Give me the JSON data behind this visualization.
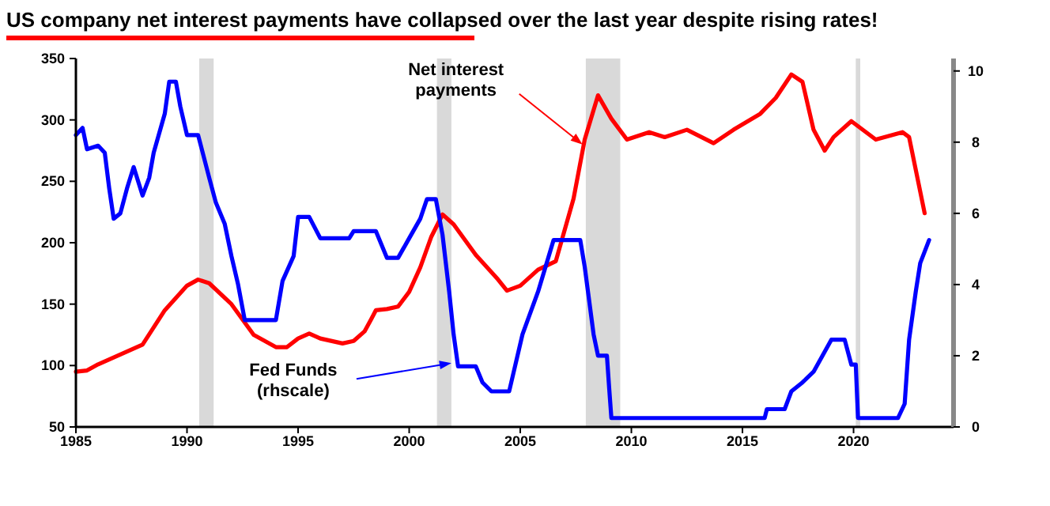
{
  "chart_data": {
    "type": "line",
    "title": "US company net interest payments have collapsed over the last year despite rising rates!",
    "xlim": [
      1985,
      2024.5
    ],
    "xticks": [
      1985,
      1990,
      1995,
      2000,
      2005,
      2010,
      2015,
      2020
    ],
    "ylim": [
      50,
      350
    ],
    "yticks": [
      50,
      100,
      150,
      200,
      250,
      300,
      350
    ],
    "y2lim": [
      0,
      10.35
    ],
    "y2ticks": [
      0,
      2,
      4,
      6,
      8,
      10
    ],
    "grid": false,
    "marker": "none",
    "line_style": "solid",
    "bands": [
      {
        "axis": "x",
        "from": 1990.55,
        "to": 1991.2,
        "color": "#d9d9d9"
      },
      {
        "axis": "x",
        "from": 2001.25,
        "to": 2001.9,
        "color": "#d9d9d9"
      },
      {
        "axis": "x",
        "from": 2007.95,
        "to": 2009.5,
        "color": "#d9d9d9"
      },
      {
        "axis": "x",
        "from": 2020.1,
        "to": 2020.3,
        "color": "#d9d9d9"
      }
    ],
    "annotations": [
      {
        "text": "Net interest payments",
        "x": 2007.8,
        "y": 280
      },
      {
        "text": "Fed Funds (rhscale)",
        "x": 2001.9,
        "y": 102
      }
    ],
    "series": [
      {
        "color": "#ff0000",
        "x": [
          1985,
          1985.5,
          1986,
          1987,
          1988,
          1989,
          1990,
          1990.5,
          1991,
          1992,
          1993,
          1994,
          1994.5,
          1995,
          1995.5,
          1996,
          1997,
          1997.5,
          1998,
          1998.3,
          1998.5,
          1999,
          1999.5,
          2000,
          2000.5,
          2001,
          2001.5,
          2002,
          2003,
          2004,
          2004.4,
          2005,
          2005.8,
          2006.6,
          2007.4,
          2007.9,
          2008.5,
          2009.1,
          2009.8,
          2010.8,
          2011.5,
          2012.5,
          2013.7,
          2014.6,
          2015.8,
          2016.5,
          2017.2,
          2017.7,
          2018.2,
          2018.7,
          2019.1,
          2019.9,
          2021,
          2022.2,
          2022.5,
          2023.2
        ],
        "values": [
          95,
          96,
          101,
          109,
          117,
          145,
          165,
          170,
          167,
          150,
          125,
          115,
          115,
          122,
          126,
          122,
          118,
          120,
          128,
          138,
          145,
          146,
          148,
          160,
          180,
          205,
          223,
          215,
          190,
          170,
          161,
          165,
          178,
          185,
          236,
          284,
          320,
          301,
          284,
          290,
          286,
          292,
          281,
          292,
          305,
          318,
          337,
          331,
          292,
          275,
          286,
          299,
          284,
          290,
          286,
          224
        ]
      },
      {
        "color": "#0000ff",
        "axis": "y2",
        "x": [
          1985,
          1985.3,
          1985.5,
          1986,
          1986.3,
          1986.5,
          1986.7,
          1987,
          1987.3,
          1987.6,
          1988,
          1988.3,
          1988.5,
          1989,
          1989.2,
          1989.5,
          1989.7,
          1990,
          1990.5,
          1991,
          1991.3,
          1991.7,
          1992,
          1992.3,
          1992.6,
          1994,
          1994.3,
          1994.8,
          1995,
          1995.5,
          1996,
          1997.3,
          1997.5,
          1998.5,
          1999,
          1999.5,
          2000,
          2000.5,
          2000.8,
          2001.2,
          2001.5,
          2001.8,
          2002,
          2002.2,
          2003,
          2003.3,
          2003.7,
          2004.5,
          2005.1,
          2005.8,
          2006.5,
          2007.7,
          2007.9,
          2008.3,
          2008.5,
          2008.9,
          2009,
          2009.1,
          2016,
          2016.1,
          2016.9,
          2017.2,
          2017.7,
          2018.2,
          2018.6,
          2019,
          2019.6,
          2019.9,
          2020.1,
          2020.2,
          2022,
          2022.3,
          2022.5,
          2022.8,
          2023,
          2023.4
        ],
        "values": [
          8.2,
          8.4,
          7.8,
          7.9,
          7.7,
          6.7,
          5.85,
          6,
          6.7,
          7.3,
          6.5,
          7,
          7.7,
          8.8,
          9.7,
          9.7,
          9,
          8.2,
          8.2,
          7,
          6.3,
          5.7,
          4.8,
          4,
          3,
          3,
          4.1,
          4.8,
          5.9,
          5.9,
          5.3,
          5.3,
          5.5,
          5.5,
          4.75,
          4.75,
          5.3,
          5.85,
          6.4,
          6.4,
          5.4,
          3.8,
          2.6,
          1.7,
          1.7,
          1.25,
          1,
          1,
          2.6,
          3.8,
          5.25,
          5.25,
          4.5,
          2.6,
          2,
          2,
          1.1,
          0.25,
          0.25,
          0.5,
          0.5,
          1,
          1.25,
          1.55,
          2,
          2.45,
          2.45,
          1.75,
          1.75,
          0.25,
          0.25,
          0.65,
          2.45,
          3.8,
          4.6,
          5.25
        ]
      }
    ]
  }
}
